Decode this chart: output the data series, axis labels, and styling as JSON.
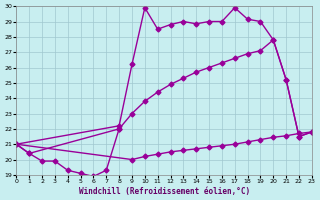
{
  "xlabel": "Windchill (Refroidissement éolien,°C)",
  "xlim": [
    0,
    23
  ],
  "ylim": [
    19,
    30
  ],
  "yticks": [
    19,
    20,
    21,
    22,
    23,
    24,
    25,
    26,
    27,
    28,
    29,
    30
  ],
  "xticks": [
    0,
    1,
    2,
    3,
    4,
    5,
    6,
    7,
    8,
    9,
    10,
    11,
    12,
    13,
    14,
    15,
    16,
    17,
    18,
    19,
    20,
    21,
    22,
    23
  ],
  "background_color": "#c8eef0",
  "grid_color": "#a0c8d0",
  "line_color": "#990099",
  "s1x": [
    0,
    1,
    2,
    3,
    4,
    5,
    6,
    7,
    8
  ],
  "s1y": [
    21.0,
    20.4,
    19.9,
    19.9,
    19.3,
    19.1,
    18.9,
    19.3,
    22.0
  ],
  "s2x": [
    0,
    8,
    9,
    10,
    11,
    12,
    13,
    14,
    15,
    16,
    17,
    18,
    19,
    20,
    21,
    22,
    23
  ],
  "s2y": [
    21.0,
    22.2,
    26.2,
    29.9,
    28.5,
    28.8,
    29.0,
    28.85,
    29.0,
    29.0,
    29.9,
    29.15,
    29.0,
    27.8,
    25.2,
    21.5,
    21.8
  ],
  "s3x": [
    0,
    1,
    8,
    9,
    10,
    11,
    12,
    13,
    14,
    15,
    16,
    17,
    18,
    19,
    20,
    21,
    22,
    23
  ],
  "s3y": [
    21.0,
    20.4,
    22.0,
    23.0,
    23.8,
    24.4,
    24.9,
    25.3,
    25.7,
    26.0,
    26.3,
    26.6,
    26.9,
    27.1,
    27.8,
    25.2,
    21.5,
    21.8
  ],
  "s4x": [
    0,
    9,
    10,
    11,
    12,
    13,
    14,
    15,
    16,
    17,
    18,
    19,
    20,
    21,
    22,
    23
  ],
  "s4y": [
    21.0,
    20.0,
    20.2,
    20.35,
    20.5,
    20.6,
    20.7,
    20.8,
    20.9,
    21.0,
    21.15,
    21.3,
    21.45,
    21.55,
    21.7,
    21.8
  ],
  "marker_style": "D",
  "line_width": 1.0,
  "marker_size": 2.5
}
